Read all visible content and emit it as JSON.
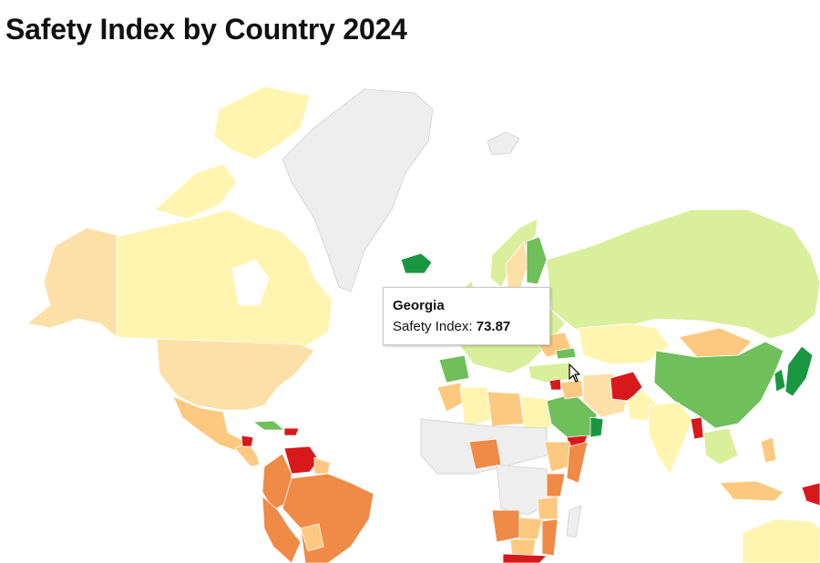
{
  "title": "Safety Index by Country 2024",
  "tooltip": {
    "country": "Georgia",
    "metric_label": "Safety Index:",
    "metric_value": "73.87"
  },
  "color_scale": {
    "very_low": "#d7191c",
    "low": "#ef8a47",
    "mid_low": "#fdc980",
    "mid": "#fff5b0",
    "mid_high": "#d9ef9b",
    "high": "#6fbf5a",
    "very_high": "#1a9641",
    "no_data": "#eeeeee"
  },
  "cursor_icon": "arrow-pointer-icon"
}
